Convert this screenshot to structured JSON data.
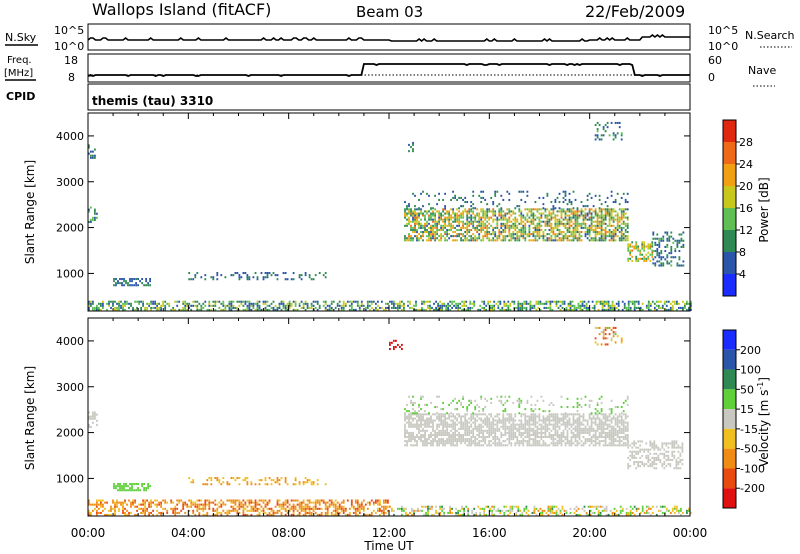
{
  "header": {
    "site": "Wallops Island (fitACF)",
    "beam": "Beam 03",
    "date": "22/Feb/2009"
  },
  "status": {
    "nsky_label": "N.Sky",
    "nsearch_label": "N.Search",
    "noise_tick_top": "10^5",
    "noise_tick_bottom": "10^0",
    "freq_label": "Freq.",
    "freq_unit": "[MHz]",
    "freq_tick_top": "18",
    "freq_tick_bottom": "8",
    "nave_label": "Nave",
    "nave_tick_top": "60",
    "nave_tick_bottom": "0",
    "cpid_label": "CPID",
    "cpid_text": "themis (tau) 3310"
  },
  "colors": {
    "power": [
      "#1a2cff",
      "#2a55a8",
      "#2e8a52",
      "#5fbf55",
      "#c8c81c",
      "#f0a010",
      "#ef6a18",
      "#e02810"
    ],
    "velocity": [
      "#1a2cff",
      "#2a55a8",
      "#2e8a52",
      "#5fcf3a",
      "#c8c8c0",
      "#f0c020",
      "#f08c14",
      "#e84a10",
      "#e01010"
    ]
  },
  "chart_data": [
    {
      "type": "heatmap",
      "name": "power",
      "ylabel": "Slant Range [km]",
      "xlabel": "Time UT",
      "xticks": [
        "00:00",
        "04:00",
        "08:00",
        "12:00",
        "16:00",
        "20:00",
        "00:00"
      ],
      "xlim": [
        0,
        24
      ],
      "yticks": [
        1000,
        2000,
        3000,
        4000
      ],
      "ylim": [
        180,
        4500
      ],
      "colorbar": {
        "label": "Power [dB]",
        "ticks": [
          "4",
          "8",
          "12",
          "16",
          "20",
          "24",
          "28"
        ],
        "range": [
          0,
          30
        ]
      },
      "bands": [
        {
          "t": [
            0.0,
            24.0
          ],
          "r": [
            180,
            400
          ],
          "density": 0.55,
          "value": [
            4,
            18
          ]
        },
        {
          "t": [
            1.0,
            2.5
          ],
          "r": [
            720,
            860
          ],
          "density": 0.6,
          "value": [
            4,
            10
          ]
        },
        {
          "t": [
            4.0,
            9.5
          ],
          "r": [
            850,
            1000
          ],
          "density": 0.25,
          "value": [
            4,
            10
          ]
        },
        {
          "t": [
            0.0,
            0.4
          ],
          "r": [
            2100,
            2450
          ],
          "density": 0.5,
          "value": [
            4,
            14
          ]
        },
        {
          "t": [
            0.0,
            0.3
          ],
          "r": [
            3500,
            3800
          ],
          "density": 0.35,
          "value": [
            4,
            10
          ]
        },
        {
          "t": [
            12.6,
            21.5
          ],
          "r": [
            1700,
            2400
          ],
          "density": 0.65,
          "value": [
            6,
            24
          ]
        },
        {
          "t": [
            12.6,
            21.5
          ],
          "r": [
            2400,
            2800
          ],
          "density": 0.15,
          "value": [
            4,
            10
          ]
        },
        {
          "t": [
            21.5,
            22.5
          ],
          "r": [
            1250,
            1700
          ],
          "density": 0.55,
          "value": [
            8,
            24
          ]
        },
        {
          "t": [
            22.5,
            23.7
          ],
          "r": [
            1150,
            1900
          ],
          "density": 0.35,
          "value": [
            4,
            12
          ]
        },
        {
          "t": [
            12.6,
            13.0
          ],
          "r": [
            3600,
            3900
          ],
          "density": 0.3,
          "value": [
            4,
            10
          ]
        },
        {
          "t": [
            20.2,
            21.3
          ],
          "r": [
            3900,
            4300
          ],
          "density": 0.3,
          "value": [
            4,
            12
          ]
        }
      ]
    },
    {
      "type": "heatmap",
      "name": "velocity",
      "ylabel": "Slant Range [km]",
      "xlabel": "Time UT",
      "xticks": [
        "00:00",
        "04:00",
        "08:00",
        "12:00",
        "16:00",
        "20:00",
        "00:00"
      ],
      "xlim": [
        0,
        24
      ],
      "yticks": [
        1000,
        2000,
        3000,
        4000
      ],
      "ylim": [
        180,
        4500
      ],
      "colorbar": {
        "label": "Velocity [m s^-1]",
        "ticks": [
          "200",
          "100",
          "50",
          "15",
          "-15",
          "-50",
          "-100",
          "-200"
        ]
      },
      "bands": [
        {
          "t": [
            0.0,
            12.0
          ],
          "r": [
            180,
            500
          ],
          "density": 0.5,
          "value": [
            5,
            7
          ]
        },
        {
          "t": [
            12.0,
            24.0
          ],
          "r": [
            180,
            400
          ],
          "density": 0.45,
          "value": [
            2,
            6
          ]
        },
        {
          "t": [
            1.0,
            2.5
          ],
          "r": [
            720,
            860
          ],
          "density": 0.6,
          "value": [
            3,
            3
          ]
        },
        {
          "t": [
            4.0,
            9.5
          ],
          "r": [
            850,
            1000
          ],
          "density": 0.25,
          "value": [
            5,
            6
          ]
        },
        {
          "t": [
            0.0,
            0.4
          ],
          "r": [
            2100,
            2450
          ],
          "density": 0.5,
          "value": [
            4,
            4
          ]
        },
        {
          "t": [
            12.0,
            12.5
          ],
          "r": [
            3800,
            4000
          ],
          "density": 0.5,
          "value": [
            8,
            8
          ]
        },
        {
          "t": [
            12.6,
            21.5
          ],
          "r": [
            1700,
            2400
          ],
          "density": 0.7,
          "value": [
            4,
            4
          ]
        },
        {
          "t": [
            12.6,
            21.5
          ],
          "r": [
            2400,
            2800
          ],
          "density": 0.15,
          "value": [
            3,
            4
          ]
        },
        {
          "t": [
            21.5,
            23.7
          ],
          "r": [
            1200,
            1800
          ],
          "density": 0.45,
          "value": [
            4,
            4
          ]
        },
        {
          "t": [
            20.2,
            21.3
          ],
          "r": [
            3900,
            4300
          ],
          "density": 0.3,
          "value": [
            3,
            8
          ]
        }
      ]
    }
  ]
}
